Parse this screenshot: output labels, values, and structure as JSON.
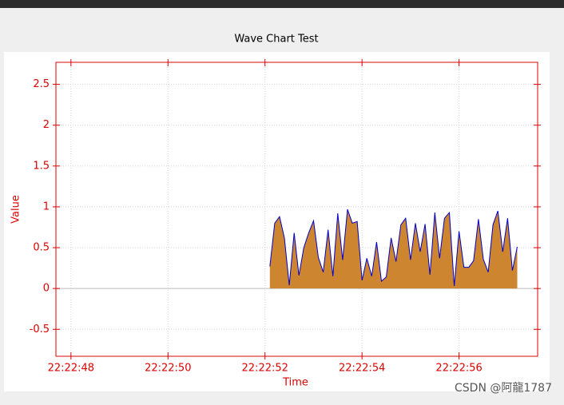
{
  "chart_data": {
    "type": "area",
    "title": "Wave Chart Test",
    "x_label": "Time",
    "y_label": "Value",
    "xlim": [
      47.69,
      57.62
    ],
    "ylim": [
      -0.83,
      2.77
    ],
    "xticks": [
      {
        "value": 48,
        "label": "22:22:48"
      },
      {
        "value": 50,
        "label": "22:22:50"
      },
      {
        "value": 52,
        "label": "22:22:52"
      },
      {
        "value": 54,
        "label": "22:22:54"
      },
      {
        "value": 56,
        "label": "22:22:56"
      }
    ],
    "yticks": [
      -0.5,
      0,
      0.5,
      1,
      1.5,
      2,
      2.5
    ],
    "grid": true,
    "axis_color": "#dd0000",
    "series": [
      {
        "color": "#cd8530",
        "line_color": "#0000cc",
        "x": [
          52.1,
          52.2,
          52.3,
          52.4,
          52.5,
          52.6,
          52.7,
          52.8,
          52.9,
          53.0,
          53.1,
          53.2,
          53.3,
          53.4,
          53.5,
          53.6,
          53.7,
          53.8,
          53.9,
          54.0,
          54.1,
          54.2,
          54.3,
          54.4,
          54.5,
          54.6,
          54.7,
          54.8,
          54.9,
          55.0,
          55.1,
          55.2,
          55.3,
          55.4,
          55.5,
          55.6,
          55.7,
          55.8,
          55.9,
          56.0,
          56.1,
          56.2,
          56.3,
          56.4,
          56.5,
          56.6,
          56.7,
          56.8,
          56.9,
          57.0,
          57.1,
          57.2
        ],
        "values": [
          0.27,
          0.8,
          0.88,
          0.62,
          0.04,
          0.68,
          0.16,
          0.5,
          0.68,
          0.83,
          0.38,
          0.2,
          0.72,
          0.15,
          0.92,
          0.35,
          0.97,
          0.8,
          0.82,
          0.1,
          0.37,
          0.15,
          0.57,
          0.09,
          0.14,
          0.62,
          0.33,
          0.78,
          0.86,
          0.35,
          0.8,
          0.45,
          0.79,
          0.17,
          0.93,
          0.37,
          0.86,
          0.93,
          0.03,
          0.7,
          0.26,
          0.26,
          0.34,
          0.85,
          0.36,
          0.2,
          0.78,
          0.95,
          0.45,
          0.86,
          0.22,
          0.51
        ]
      }
    ]
  },
  "watermark": "CSDN @阿龍1787"
}
